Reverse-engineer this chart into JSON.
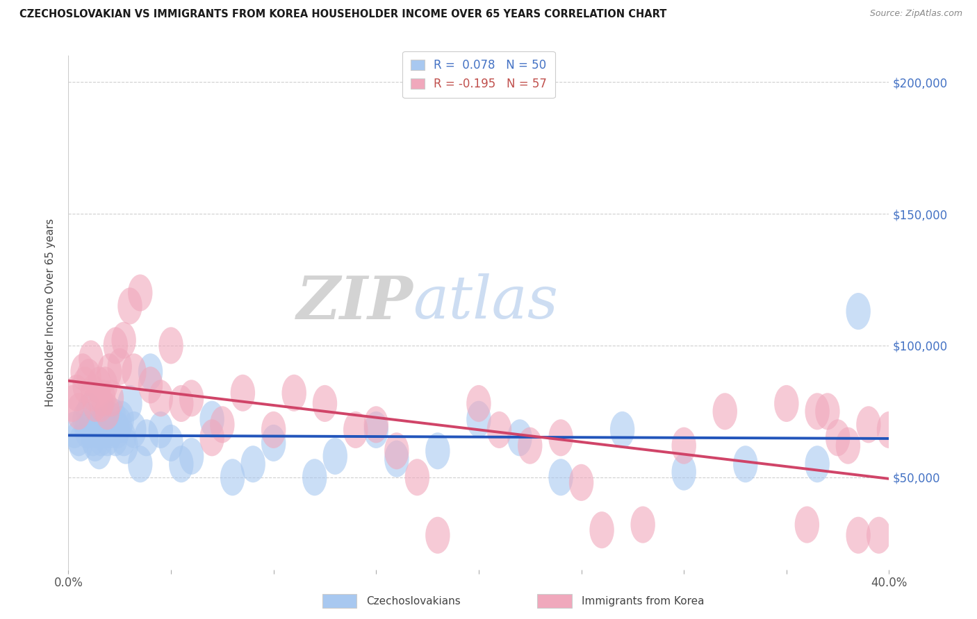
{
  "title": "CZECHOSLOVAKIAN VS IMMIGRANTS FROM KOREA HOUSEHOLDER INCOME OVER 65 YEARS CORRELATION CHART",
  "source_text": "Source: ZipAtlas.com",
  "ylabel": "Householder Income Over 65 years",
  "xlim": [
    0.0,
    40.0
  ],
  "ylim": [
    15000,
    210000
  ],
  "yticks": [
    50000,
    100000,
    150000,
    200000
  ],
  "ytick_labels": [
    "$50,000",
    "$100,000",
    "$150,000",
    "$200,000"
  ],
  "legend1_label": "R =  0.078   N = 50",
  "legend2_label": "R = -0.195   N = 57",
  "blue_color": "#A8C8F0",
  "pink_color": "#F0A8BC",
  "blue_line_color": "#2255BB",
  "pink_line_color": "#D04468",
  "watermark": "ZIPatlas",
  "watermark_blue": "#C5D8F0",
  "watermark_gray": "#D8D8D8",
  "background_color": "#FFFFFF",
  "grid_color": "#BBBBBB",
  "legend_blue_text": "#4472C4",
  "legend_pink_text": "#C0504D",
  "blue_scatter_x": [
    0.3,
    0.5,
    0.6,
    0.8,
    0.9,
    1.0,
    1.1,
    1.2,
    1.3,
    1.4,
    1.5,
    1.6,
    1.7,
    1.8,
    1.9,
    2.0,
    2.1,
    2.2,
    2.3,
    2.4,
    2.5,
    2.6,
    2.7,
    2.8,
    3.0,
    3.2,
    3.5,
    3.8,
    4.0,
    4.5,
    5.0,
    5.5,
    6.0,
    7.0,
    8.0,
    9.0,
    10.0,
    12.0,
    13.0,
    15.0,
    16.0,
    18.0,
    20.0,
    22.0,
    24.0,
    27.0,
    30.0,
    33.0,
    36.5,
    38.5
  ],
  "blue_scatter_y": [
    68000,
    65000,
    63000,
    72000,
    68000,
    75000,
    70000,
    65000,
    63000,
    68000,
    60000,
    65000,
    70000,
    68000,
    65000,
    72000,
    68000,
    73000,
    65000,
    68000,
    70000,
    72000,
    65000,
    62000,
    78000,
    68000,
    55000,
    65000,
    90000,
    68000,
    63000,
    55000,
    58000,
    72000,
    50000,
    55000,
    63000,
    50000,
    58000,
    68000,
    57000,
    60000,
    72000,
    65000,
    50000,
    68000,
    52000,
    55000,
    55000,
    113000
  ],
  "pink_scatter_x": [
    0.2,
    0.4,
    0.5,
    0.7,
    0.8,
    1.0,
    1.1,
    1.2,
    1.3,
    1.5,
    1.6,
    1.7,
    1.8,
    1.9,
    2.0,
    2.1,
    2.3,
    2.5,
    2.7,
    3.0,
    3.2,
    3.5,
    4.0,
    4.5,
    5.0,
    5.5,
    6.0,
    7.0,
    7.5,
    8.5,
    10.0,
    11.0,
    12.5,
    14.0,
    15.0,
    16.0,
    17.0,
    18.0,
    20.0,
    21.0,
    22.5,
    24.0,
    25.0,
    26.0,
    28.0,
    30.0,
    32.0,
    35.0,
    36.0,
    37.5,
    38.0,
    38.5,
    39.0,
    39.5,
    40.0,
    36.5,
    37.0
  ],
  "pink_scatter_y": [
    78000,
    82000,
    75000,
    90000,
    85000,
    88000,
    95000,
    82000,
    78000,
    85000,
    78000,
    80000,
    85000,
    75000,
    90000,
    80000,
    100000,
    92000,
    102000,
    115000,
    90000,
    120000,
    85000,
    80000,
    100000,
    78000,
    80000,
    65000,
    70000,
    82000,
    68000,
    82000,
    78000,
    68000,
    70000,
    60000,
    50000,
    28000,
    78000,
    68000,
    62000,
    65000,
    48000,
    30000,
    32000,
    62000,
    75000,
    78000,
    32000,
    65000,
    62000,
    28000,
    70000,
    28000,
    68000,
    75000,
    75000
  ]
}
